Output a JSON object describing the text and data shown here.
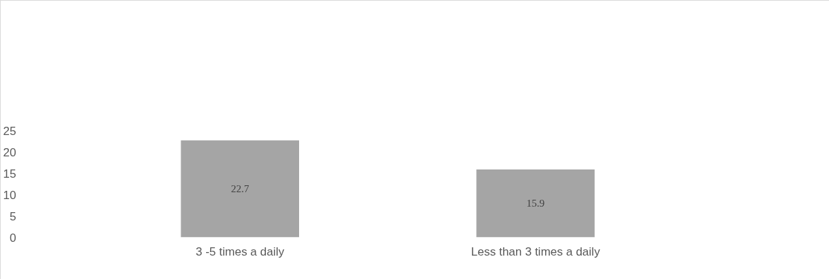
{
  "chart_data": {
    "type": "bar",
    "categories": [
      "3 -5 times a daily",
      "Less than 3 times a daily"
    ],
    "values": [
      22.7,
      15.9
    ],
    "color": "#a5a5a5",
    "ylim": [
      0,
      25
    ],
    "yticks": [
      0,
      5,
      10,
      15,
      20,
      25
    ],
    "data_labels": true,
    "grid": false
  }
}
